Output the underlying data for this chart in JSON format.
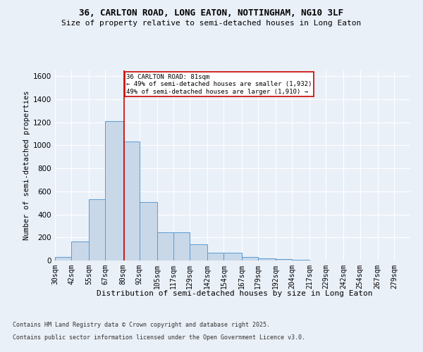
{
  "title1": "36, CARLTON ROAD, LONG EATON, NOTTINGHAM, NG10 3LF",
  "title2": "Size of property relative to semi-detached houses in Long Eaton",
  "xlabel": "Distribution of semi-detached houses by size in Long Eaton",
  "ylabel": "Number of semi-detached properties",
  "bin_labels": [
    "30sqm",
    "42sqm",
    "55sqm",
    "67sqm",
    "80sqm",
    "92sqm",
    "105sqm",
    "117sqm",
    "129sqm",
    "142sqm",
    "154sqm",
    "167sqm",
    "179sqm",
    "192sqm",
    "204sqm",
    "217sqm",
    "229sqm",
    "242sqm",
    "254sqm",
    "267sqm",
    "279sqm"
  ],
  "bin_edges": [
    30,
    42,
    55,
    67,
    80,
    92,
    105,
    117,
    129,
    142,
    154,
    167,
    179,
    192,
    204,
    217,
    229,
    242,
    254,
    267,
    279
  ],
  "bar_heights": [
    30,
    165,
    530,
    1210,
    1030,
    510,
    245,
    245,
    140,
    65,
    65,
    30,
    20,
    10,
    5,
    3,
    2,
    1,
    0,
    0
  ],
  "bar_color": "#c8d8e8",
  "bar_edge_color": "#5b9bd5",
  "property_size": 81,
  "property_label": "36 CARLTON ROAD: 81sqm",
  "smaller_pct": "49%",
  "smaller_count": "1,932",
  "larger_pct": "49%",
  "larger_count": "1,910",
  "vline_color": "#cc0000",
  "annotation_box_color": "#cc0000",
  "ylim": [
    0,
    1650
  ],
  "yticks": [
    0,
    200,
    400,
    600,
    800,
    1000,
    1200,
    1400,
    1600
  ],
  "footer1": "Contains HM Land Registry data © Crown copyright and database right 2025.",
  "footer2": "Contains public sector information licensed under the Open Government Licence v3.0.",
  "bg_color": "#eaf0f8",
  "plot_bg_color": "#eaf0f8"
}
